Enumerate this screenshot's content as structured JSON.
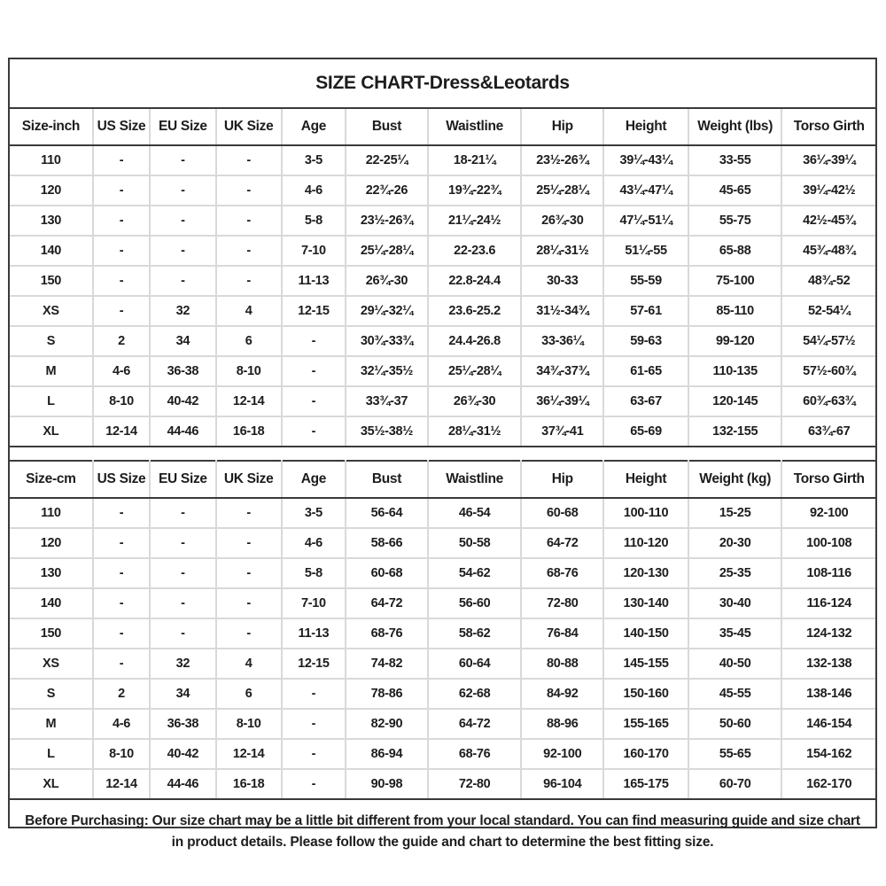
{
  "title": "SIZE CHART-Dress&Leotards",
  "tables": [
    {
      "unit": "inch",
      "headers": [
        "Size-inch",
        "US Size",
        "EU Size",
        "UK Size",
        "Age",
        "Bust",
        "Waistline",
        "Hip",
        "Height",
        "Weight (lbs)",
        "Torso Girth"
      ],
      "rows": [
        [
          "110",
          "-",
          "-",
          "-",
          "3-5",
          "22-25¼",
          "18-21¼",
          "23½-26¾",
          "39¼-43¼",
          "33-55",
          "36¼-39¼"
        ],
        [
          "120",
          "-",
          "-",
          "-",
          "4-6",
          "22¾-26",
          "19¾-22¾",
          "25¼-28¼",
          "43¼-47¼",
          "45-65",
          "39¼-42½"
        ],
        [
          "130",
          "-",
          "-",
          "-",
          "5-8",
          "23½-26¾",
          "21¼-24½",
          "26¾-30",
          "47¼-51¼",
          "55-75",
          "42½-45¾"
        ],
        [
          "140",
          "-",
          "-",
          "-",
          "7-10",
          "25¼-28¼",
          "22-23.6",
          "28¼-31½",
          "51¼-55",
          "65-88",
          "45¾-48¾"
        ],
        [
          "150",
          "-",
          "-",
          "-",
          "11-13",
          "26¾-30",
          "22.8-24.4",
          "30-33",
          "55-59",
          "75-100",
          "48¾-52"
        ],
        [
          "XS",
          "-",
          "32",
          "4",
          "12-15",
          "29¼-32¼",
          "23.6-25.2",
          "31½-34¾",
          "57-61",
          "85-110",
          "52-54¼"
        ],
        [
          "S",
          "2",
          "34",
          "6",
          "-",
          "30¾-33¾",
          "24.4-26.8",
          "33-36¼",
          "59-63",
          "99-120",
          "54¼-57½"
        ],
        [
          "M",
          "4-6",
          "36-38",
          "8-10",
          "-",
          "32¼-35½",
          "25¼-28¼",
          "34¾-37¾",
          "61-65",
          "110-135",
          "57½-60¾"
        ],
        [
          "L",
          "8-10",
          "40-42",
          "12-14",
          "-",
          "33¾-37",
          "26¾-30",
          "36¼-39¼",
          "63-67",
          "120-145",
          "60¾-63¾"
        ],
        [
          "XL",
          "12-14",
          "44-46",
          "16-18",
          "-",
          "35½-38½",
          "28¼-31½",
          "37¾-41",
          "65-69",
          "132-155",
          "63¾-67"
        ]
      ]
    },
    {
      "unit": "cm",
      "headers": [
        "Size-cm",
        "US Size",
        "EU Size",
        "UK Size",
        "Age",
        "Bust",
        "Waistline",
        "Hip",
        "Height",
        "Weight (kg)",
        "Torso Girth"
      ],
      "rows": [
        [
          "110",
          "-",
          "-",
          "-",
          "3-5",
          "56-64",
          "46-54",
          "60-68",
          "100-110",
          "15-25",
          "92-100"
        ],
        [
          "120",
          "-",
          "-",
          "-",
          "4-6",
          "58-66",
          "50-58",
          "64-72",
          "110-120",
          "20-30",
          "100-108"
        ],
        [
          "130",
          "-",
          "-",
          "-",
          "5-8",
          "60-68",
          "54-62",
          "68-76",
          "120-130",
          "25-35",
          "108-116"
        ],
        [
          "140",
          "-",
          "-",
          "-",
          "7-10",
          "64-72",
          "56-60",
          "72-80",
          "130-140",
          "30-40",
          "116-124"
        ],
        [
          "150",
          "-",
          "-",
          "-",
          "11-13",
          "68-76",
          "58-62",
          "76-84",
          "140-150",
          "35-45",
          "124-132"
        ],
        [
          "XS",
          "-",
          "32",
          "4",
          "12-15",
          "74-82",
          "60-64",
          "80-88",
          "145-155",
          "40-50",
          "132-138"
        ],
        [
          "S",
          "2",
          "34",
          "6",
          "-",
          "78-86",
          "62-68",
          "84-92",
          "150-160",
          "45-55",
          "138-146"
        ],
        [
          "M",
          "4-6",
          "36-38",
          "8-10",
          "-",
          "82-90",
          "64-72",
          "88-96",
          "155-165",
          "50-60",
          "146-154"
        ],
        [
          "L",
          "8-10",
          "40-42",
          "12-14",
          "-",
          "86-94",
          "68-76",
          "92-100",
          "160-170",
          "55-65",
          "154-162"
        ],
        [
          "XL",
          "12-14",
          "44-46",
          "16-18",
          "-",
          "90-98",
          "72-80",
          "96-104",
          "165-175",
          "60-70",
          "162-170"
        ]
      ]
    }
  ],
  "footer": {
    "note": "Before Purchasing: Our size chart may be a little bit different from your local standard. You can find measuring guide and size chart in product details. Please follow the guide and chart to determine the best fitting size."
  },
  "colors": {
    "text": "#1d1d1d",
    "border_dark": "#3a3a3a",
    "border_light": "#d9d9d9",
    "background": "#ffffff"
  }
}
